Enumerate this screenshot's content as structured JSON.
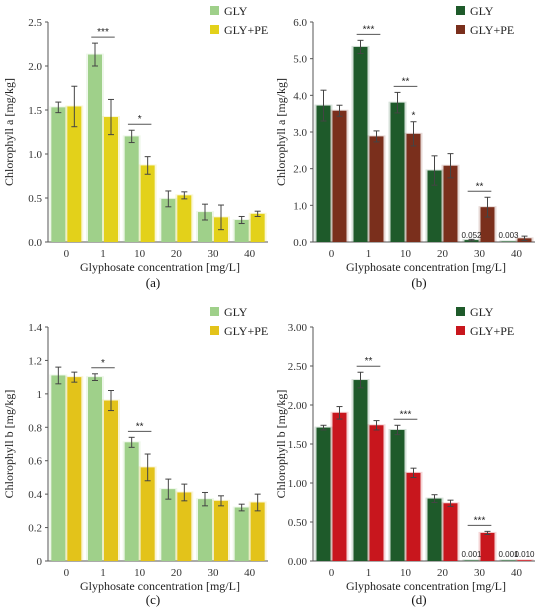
{
  "chart_data": [
    {
      "panel": "(a)",
      "type": "bar",
      "ylabel": "Chlorophyll a [mg/kg]",
      "xlabel": "Glyphosate concentration [mg/L]",
      "categories": [
        "0",
        "1",
        "10",
        "20",
        "30",
        "40"
      ],
      "ylim": [
        0,
        2.5
      ],
      "yticks": [
        "0.0",
        "0.5",
        "1.0",
        "1.5",
        "2.0",
        "2.5"
      ],
      "legend": "top-right",
      "series": [
        {
          "name": "GLY",
          "color": "#9fd08a",
          "values": [
            1.53,
            2.13,
            1.2,
            0.49,
            0.34,
            0.25
          ],
          "errors": [
            0.06,
            0.13,
            0.07,
            0.09,
            0.09,
            0.04
          ]
        },
        {
          "name": "GLY+PE",
          "color": "#e3d11a",
          "values": [
            1.54,
            1.42,
            0.87,
            0.53,
            0.28,
            0.32
          ],
          "errors": [
            0.23,
            0.2,
            0.1,
            0.04,
            0.14,
            0.03
          ]
        }
      ],
      "significance": [
        {
          "category": "1",
          "label": "***"
        },
        {
          "category": "10",
          "label": "*"
        }
      ],
      "data_labels": []
    },
    {
      "panel": "(b)",
      "type": "bar",
      "ylabel": "Chlorophyll a [mg/kg]",
      "xlabel": "Glyphosate concentration [mg/L]",
      "categories": [
        "0",
        "1",
        "10",
        "20",
        "30",
        "40"
      ],
      "ylim": [
        0,
        6.0
      ],
      "yticks": [
        "0.0",
        "1.0",
        "2.0",
        "3.0",
        "4.0",
        "5.0",
        "6.0"
      ],
      "legend": "top-right",
      "series": [
        {
          "name": "GLY",
          "color": "#1e5a2a",
          "values": [
            3.72,
            5.32,
            3.8,
            1.95,
            0.052,
            0.003
          ],
          "errors": [
            0.42,
            0.18,
            0.28,
            0.4,
            0.02,
            0
          ]
        },
        {
          "name": "GLY+PE",
          "color": "#7a2f1c",
          "values": [
            3.58,
            2.88,
            2.95,
            2.08,
            0.95,
            0.1
          ],
          "errors": [
            0.15,
            0.15,
            0.33,
            0.33,
            0.27,
            0.06
          ]
        }
      ],
      "significance": [
        {
          "category": "1",
          "label": "***"
        },
        {
          "category": "10",
          "label": "**"
        },
        {
          "category": "10",
          "label": "*",
          "over": "GLY+PE"
        },
        {
          "category": "30",
          "label": "**"
        }
      ],
      "data_labels": [
        {
          "category": "30",
          "series": "GLY",
          "text": "0.052"
        },
        {
          "category": "40",
          "series": "GLY",
          "text": "0.003"
        }
      ]
    },
    {
      "panel": "(c)",
      "type": "bar",
      "ylabel": "Chlorophyll b [mg/kg]",
      "xlabel": "Glyphosate concentration [mg/L]",
      "categories": [
        "0",
        "1",
        "10",
        "20",
        "30",
        "40"
      ],
      "ylim": [
        0,
        1.4
      ],
      "yticks": [
        "0",
        "0.2",
        "0.4",
        "0.6",
        "0.8",
        "1",
        "1.2",
        "1.4"
      ],
      "legend": "top-right",
      "series": [
        {
          "name": "GLY",
          "color": "#9fd08a",
          "values": [
            1.11,
            1.1,
            0.71,
            0.43,
            0.37,
            0.32
          ],
          "errors": [
            0.05,
            0.02,
            0.03,
            0.06,
            0.04,
            0.02
          ]
        },
        {
          "name": "GLY+PE",
          "color": "#e3c31a",
          "values": [
            1.1,
            0.96,
            0.56,
            0.41,
            0.36,
            0.35
          ],
          "errors": [
            0.03,
            0.06,
            0.08,
            0.05,
            0.03,
            0.05
          ]
        }
      ],
      "significance": [
        {
          "category": "1",
          "label": "*"
        },
        {
          "category": "10",
          "label": "**"
        }
      ],
      "data_labels": []
    },
    {
      "panel": "(d)",
      "type": "bar",
      "ylabel": "Chlorophyll b [mg/kg]",
      "xlabel": "Glyphosate concentration [mg/L]",
      "categories": [
        "0",
        "1",
        "10",
        "20",
        "30",
        "40"
      ],
      "ylim": [
        0,
        3.0
      ],
      "yticks": [
        "0.00",
        "0.50",
        "1.00",
        "1.50",
        "2.00",
        "2.50",
        "3.00"
      ],
      "legend": "top-right",
      "series": [
        {
          "name": "GLY",
          "color": "#1e5a2a",
          "values": [
            1.71,
            2.32,
            1.68,
            0.8,
            0.001,
            0.001
          ],
          "errors": [
            0.03,
            0.1,
            0.06,
            0.05,
            0,
            0
          ]
        },
        {
          "name": "GLY+PE",
          "color": "#c8161d",
          "values": [
            1.9,
            1.74,
            1.13,
            0.74,
            0.36,
            0.01
          ],
          "errors": [
            0.08,
            0.06,
            0.06,
            0.04,
            0.02,
            0
          ]
        }
      ],
      "significance": [
        {
          "category": "1",
          "label": "**"
        },
        {
          "category": "10",
          "label": "***"
        },
        {
          "category": "30",
          "label": "***"
        }
      ],
      "data_labels": [
        {
          "category": "30",
          "series": "GLY",
          "text": "0.001"
        },
        {
          "category": "40",
          "series": "GLY",
          "text": "0.001"
        },
        {
          "category": "40",
          "series": "GLY+PE",
          "text": "0.010"
        }
      ]
    }
  ]
}
